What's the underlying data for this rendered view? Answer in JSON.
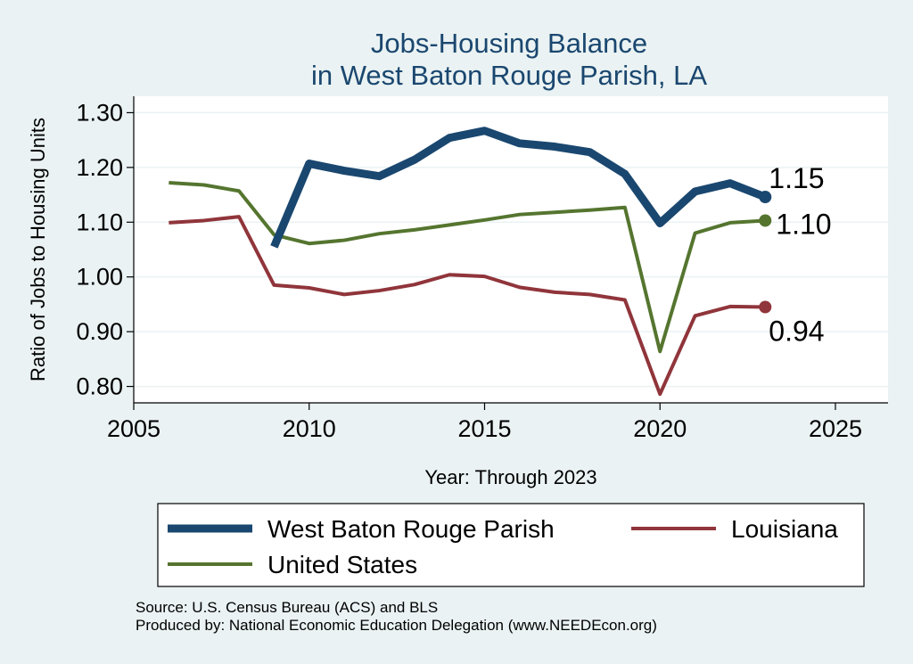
{
  "chart_data": {
    "type": "line",
    "title": [
      "Jobs-Housing Balance",
      "in West Baton Rouge Parish, LA"
    ],
    "xlabel": "Year: Through 2023",
    "ylabel": "Ratio of Jobs to Housing Units",
    "xlim": [
      2005,
      2026.5
    ],
    "ylim": [
      0.77,
      1.33
    ],
    "xticks": [
      2005,
      2010,
      2015,
      2020,
      2025
    ],
    "xtick_labels": [
      "2005",
      "2010",
      "2015",
      "2020",
      "2025"
    ],
    "yticks": [
      0.8,
      0.9,
      1.0,
      1.1,
      1.2,
      1.3
    ],
    "ytick_labels": [
      "0.80",
      "0.90",
      "1.00",
      "1.10",
      "1.20",
      "1.30"
    ],
    "grid": true,
    "legend_position": "bottom",
    "series": [
      {
        "name": "West Baton Rouge Parish",
        "color": "#1a476f",
        "x": [
          2009,
          2010,
          2011,
          2012,
          2013,
          2014,
          2015,
          2016,
          2017,
          2018,
          2019,
          2020,
          2021,
          2022,
          2023
        ],
        "values": [
          1.055,
          1.207,
          1.194,
          1.184,
          1.214,
          1.254,
          1.267,
          1.244,
          1.238,
          1.228,
          1.188,
          1.098,
          1.156,
          1.171,
          1.146
        ],
        "end_label": "1.15"
      },
      {
        "name": "Louisiana",
        "color": "#90353b",
        "x": [
          2006,
          2007,
          2008,
          2009,
          2010,
          2011,
          2012,
          2013,
          2014,
          2015,
          2016,
          2017,
          2018,
          2019,
          2020,
          2021,
          2022,
          2023
        ],
        "values": [
          1.099,
          1.103,
          1.11,
          0.985,
          0.98,
          0.968,
          0.975,
          0.986,
          1.004,
          1.001,
          0.981,
          0.972,
          0.968,
          0.958,
          0.786,
          0.929,
          0.946,
          0.945
        ],
        "end_label": "0.94"
      },
      {
        "name": "United States",
        "color": "#55752f",
        "x": [
          2006,
          2007,
          2008,
          2009,
          2010,
          2011,
          2012,
          2013,
          2014,
          2015,
          2016,
          2017,
          2018,
          2019,
          2020,
          2021,
          2022,
          2023
        ],
        "values": [
          1.172,
          1.168,
          1.157,
          1.077,
          1.061,
          1.067,
          1.079,
          1.086,
          1.095,
          1.104,
          1.114,
          1.118,
          1.122,
          1.127,
          0.864,
          1.08,
          1.099,
          1.103
        ],
        "end_label": "1.10"
      }
    ],
    "source_lines": [
      "Source: U.S. Census Bureau (ACS) and BLS",
      "Produced by: National Economic Education Delegation (www.NEEDEcon.org)"
    ]
  }
}
